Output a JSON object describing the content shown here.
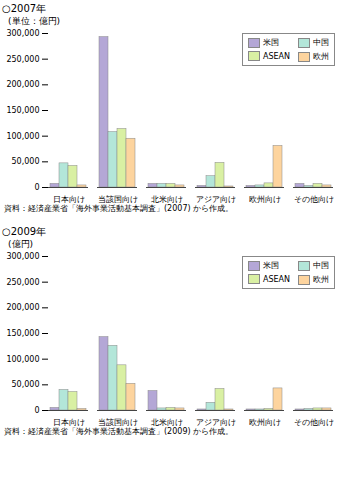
{
  "chart_data": [
    {
      "type": "bar",
      "title": "○2007年",
      "y_label": "(単位：億円)",
      "annotations": [
        "資料：経済産業省「海外事業活動基本調査」(2007) から作成。"
      ],
      "categories": [
        "日本向け",
        "当該国向け",
        "北米向け",
        "アジア向け",
        "欧州向け",
        "その他向け"
      ],
      "series": [
        {
          "name": "米国",
          "color": "#b4a7d6",
          "values": [
            7000,
            293000,
            7000,
            3000,
            3000,
            7000
          ]
        },
        {
          "name": "中国",
          "color": "#b3e6d9",
          "values": [
            47000,
            108000,
            7000,
            22000,
            4000,
            3000
          ]
        },
        {
          "name": "ASEAN",
          "color": "#d9f0a3",
          "values": [
            42000,
            114000,
            7000,
            48000,
            8000,
            7000
          ]
        },
        {
          "name": "欧州",
          "color": "#fdd49e",
          "values": [
            4000,
            95000,
            4000,
            2000,
            81000,
            4000
          ]
        }
      ],
      "ylim": [
        0,
        300000
      ],
      "yticks": [
        0,
        {
          "value": 50000,
          "label": "50,000"
        },
        {
          "value": 100000,
          "label": "100,000"
        },
        {
          "value": 150000,
          "label": "150,000"
        },
        {
          "value": 200000,
          "label": "200,000"
        },
        {
          "value": 250000,
          "label": "250,000"
        },
        {
          "value": 300000,
          "label": "300,000"
        }
      ],
      "grid": false,
      "legend": "top-right"
    },
    {
      "type": "bar",
      "title": "○2009年",
      "y_label": "(億円)",
      "annotations": [
        "資料：経済産業省「海外事業活動基本調査」(2009) から作成。"
      ],
      "categories": [
        "日本向け",
        "当該国向け",
        "北米向け",
        "アジア向け",
        "欧州向け",
        "その他向け"
      ],
      "series": [
        {
          "name": "米国",
          "color": "#b4a7d6",
          "values": [
            5000,
            143000,
            38000,
            2000,
            2000,
            2000
          ]
        },
        {
          "name": "中国",
          "color": "#b3e6d9",
          "values": [
            40000,
            126000,
            4000,
            15000,
            2000,
            3000
          ]
        },
        {
          "name": "ASEAN",
          "color": "#d9f0a3",
          "values": [
            36000,
            88000,
            5000,
            42000,
            3000,
            4000
          ]
        },
        {
          "name": "欧州",
          "color": "#fdd49e",
          "values": [
            3000,
            52000,
            4000,
            2000,
            43000,
            4000
          ]
        }
      ],
      "ylim": [
        0,
        300000
      ],
      "yticks": [
        0,
        {
          "value": 50000,
          "label": "50,000"
        },
        {
          "value": 100000,
          "label": "100,000"
        },
        {
          "value": 150000,
          "label": "150,000"
        },
        {
          "value": 200000,
          "label": "200,000"
        },
        {
          "value": 250000,
          "label": "250,000"
        },
        {
          "value": 300000,
          "label": "300,000"
        }
      ],
      "grid": false,
      "legend": "top-right"
    }
  ]
}
